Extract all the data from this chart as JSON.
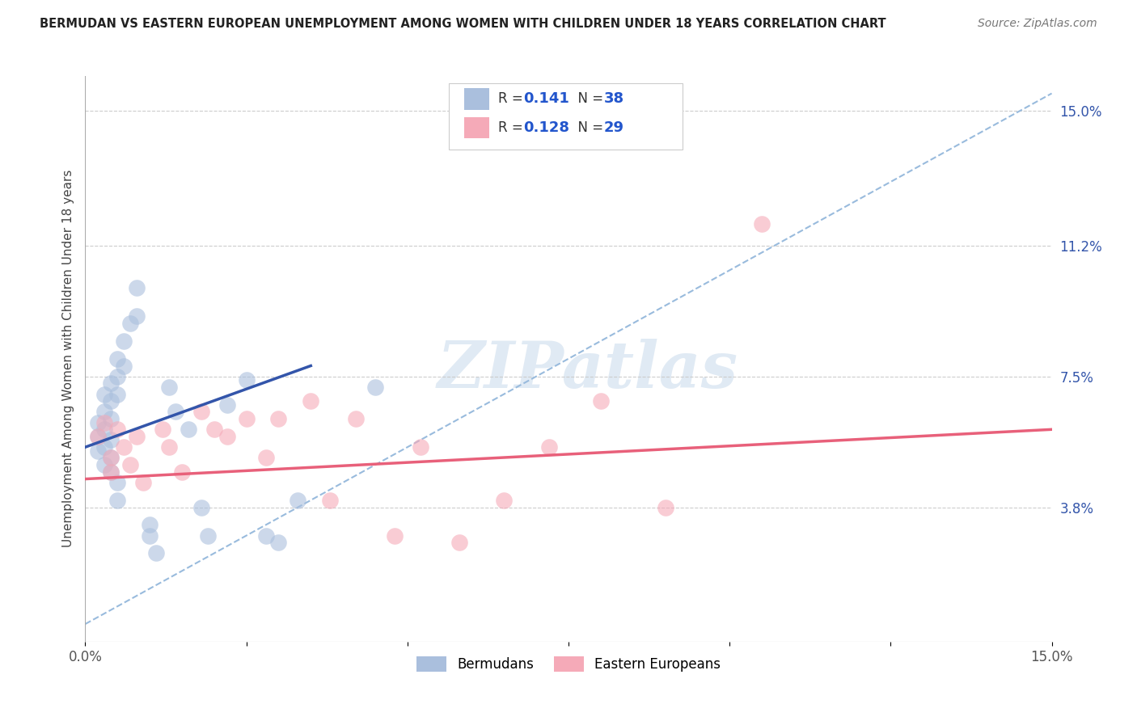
{
  "title": "BERMUDAN VS EASTERN EUROPEAN UNEMPLOYMENT AMONG WOMEN WITH CHILDREN UNDER 18 YEARS CORRELATION CHART",
  "source": "Source: ZipAtlas.com",
  "ylabel": "Unemployment Among Women with Children Under 18 years",
  "xlim": [
    0.0,
    0.15
  ],
  "ylim": [
    0.0,
    0.16
  ],
  "xticks": [
    0.0,
    0.025,
    0.05,
    0.075,
    0.1,
    0.125,
    0.15
  ],
  "xticklabels": [
    "0.0%",
    "",
    "",
    "",
    "",
    "",
    "15.0%"
  ],
  "yticks_right": [
    0.038,
    0.075,
    0.112,
    0.15
  ],
  "yticks_right_labels": [
    "3.8%",
    "7.5%",
    "11.2%",
    "15.0%"
  ],
  "bermudans_x": [
    0.002,
    0.002,
    0.002,
    0.003,
    0.003,
    0.003,
    0.003,
    0.003,
    0.004,
    0.004,
    0.004,
    0.004,
    0.004,
    0.004,
    0.005,
    0.005,
    0.005,
    0.005,
    0.005,
    0.006,
    0.006,
    0.007,
    0.008,
    0.008,
    0.01,
    0.01,
    0.011,
    0.013,
    0.014,
    0.016,
    0.018,
    0.019,
    0.022,
    0.025,
    0.028,
    0.03,
    0.033,
    0.045
  ],
  "bermudans_y": [
    0.062,
    0.058,
    0.054,
    0.07,
    0.065,
    0.06,
    0.055,
    0.05,
    0.073,
    0.068,
    0.063,
    0.057,
    0.052,
    0.048,
    0.08,
    0.075,
    0.07,
    0.045,
    0.04,
    0.085,
    0.078,
    0.09,
    0.1,
    0.092,
    0.033,
    0.03,
    0.025,
    0.072,
    0.065,
    0.06,
    0.038,
    0.03,
    0.067,
    0.074,
    0.03,
    0.028,
    0.04,
    0.072
  ],
  "eastern_x": [
    0.002,
    0.003,
    0.004,
    0.004,
    0.005,
    0.006,
    0.007,
    0.008,
    0.009,
    0.012,
    0.013,
    0.015,
    0.018,
    0.02,
    0.022,
    0.025,
    0.028,
    0.03,
    0.035,
    0.038,
    0.042,
    0.048,
    0.052,
    0.058,
    0.065,
    0.072,
    0.08,
    0.09,
    0.105
  ],
  "eastern_y": [
    0.058,
    0.062,
    0.052,
    0.048,
    0.06,
    0.055,
    0.05,
    0.058,
    0.045,
    0.06,
    0.055,
    0.048,
    0.065,
    0.06,
    0.058,
    0.063,
    0.052,
    0.063,
    0.068,
    0.04,
    0.063,
    0.03,
    0.055,
    0.028,
    0.04,
    0.055,
    0.068,
    0.038,
    0.118
  ],
  "blue_scatter_color": "#aabfdd",
  "pink_scatter_color": "#f5aab8",
  "blue_line_color": "#3355aa",
  "pink_line_color": "#e8607a",
  "dashed_line_color": "#99bbdd",
  "watermark_color": "#dde8f3",
  "watermark_text": "ZIPatlas",
  "legend_R1": "0.141",
  "legend_N1": "38",
  "legend_R2": "0.128",
  "legend_N2": "29",
  "bottom_legend_labels": [
    "Bermudans",
    "Eastern Europeans"
  ]
}
